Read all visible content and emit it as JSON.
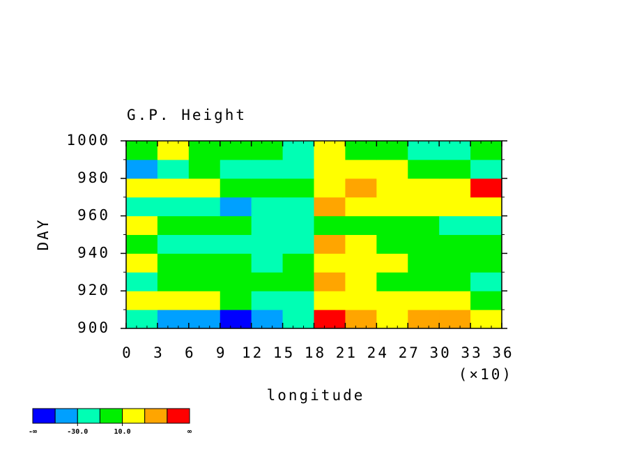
{
  "chart_data": {
    "type": "heatmap",
    "title": "G.P. Height",
    "x_label": "longitude",
    "x_scale_label": "(×10)",
    "y_label": "DAY",
    "xlim": [
      0,
      36
    ],
    "xticks": [
      0,
      3,
      6,
      9,
      12,
      15,
      18,
      21,
      24,
      27,
      30,
      33,
      36
    ],
    "ylim": [
      900,
      1000
    ],
    "yticks": [
      900,
      920,
      940,
      960,
      980,
      1000
    ],
    "x": [
      1.5,
      4.5,
      7.5,
      10.5,
      13.5,
      16.5,
      19.5,
      22.5,
      25.5,
      28.5,
      31.5,
      34.5
    ],
    "y": [
      905,
      915,
      925,
      935,
      945,
      955,
      965,
      975,
      985,
      995
    ],
    "z": [
      [
        -30,
        -35,
        -40,
        -55,
        -45,
        -20,
        55,
        30,
        25,
        35,
        30,
        15
      ],
      [
        20,
        15,
        10,
        -5,
        -25,
        -30,
        25,
        25,
        15,
        20,
        10,
        -5
      ],
      [
        -15,
        -10,
        0,
        -5,
        -10,
        5,
        30,
        15,
        5,
        0,
        -10,
        -15
      ],
      [
        15,
        0,
        -5,
        -10,
        -15,
        -10,
        15,
        20,
        10,
        5,
        0,
        5
      ],
      [
        -5,
        -15,
        -20,
        -25,
        -20,
        -25,
        35,
        15,
        0,
        -5,
        -10,
        -5
      ],
      [
        15,
        5,
        -5,
        -10,
        -15,
        -20,
        0,
        5,
        -5,
        -10,
        -15,
        -20
      ],
      [
        -15,
        -25,
        -30,
        -35,
        -30,
        -20,
        40,
        25,
        20,
        15,
        20,
        15
      ],
      [
        10,
        20,
        15,
        5,
        5,
        0,
        15,
        30,
        25,
        20,
        20,
        55
      ],
      [
        -35,
        -15,
        -10,
        -30,
        -25,
        -20,
        20,
        25,
        15,
        5,
        0,
        -15
      ],
      [
        0,
        15,
        5,
        0,
        -5,
        -15,
        20,
        -5,
        -10,
        -15,
        -20,
        -10
      ]
    ],
    "levels": [
      -50,
      -30,
      -10,
      10,
      30,
      50
    ],
    "colors": [
      "#0000ff",
      "#00a0ff",
      "#00ffb4",
      "#00f000",
      "#ffff00",
      "#ffa500",
      "#ff0000"
    ],
    "colorbar": {
      "low_label": "-∞",
      "high_label": "∞",
      "ticks": [
        {
          "value": -30,
          "label": "-30.0"
        },
        {
          "value": 10,
          "label": "10.0"
        }
      ]
    }
  }
}
